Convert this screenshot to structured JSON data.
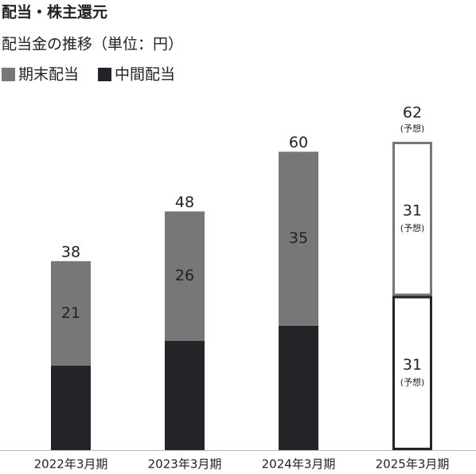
{
  "chart_data": {
    "type": "stacked_bar",
    "title": "配当・株主還元",
    "subtitle": "配当金の推移（単位：円）",
    "categories": [
      "2022年3月期",
      "2023年3月期",
      "2024年3月期",
      "2025年3月期"
    ],
    "series": [
      {
        "name": "期末配当",
        "color": "#777777",
        "values": [
          21,
          26,
          35,
          31
        ]
      },
      {
        "name": "中間配当",
        "color": "#222428",
        "values": [
          17,
          22,
          25,
          31
        ]
      }
    ],
    "totals": [
      38,
      48,
      60,
      62
    ],
    "forecast": [
      false,
      false,
      false,
      true
    ],
    "forecast_label": "(予想)",
    "ylim": [
      0,
      62
    ]
  }
}
